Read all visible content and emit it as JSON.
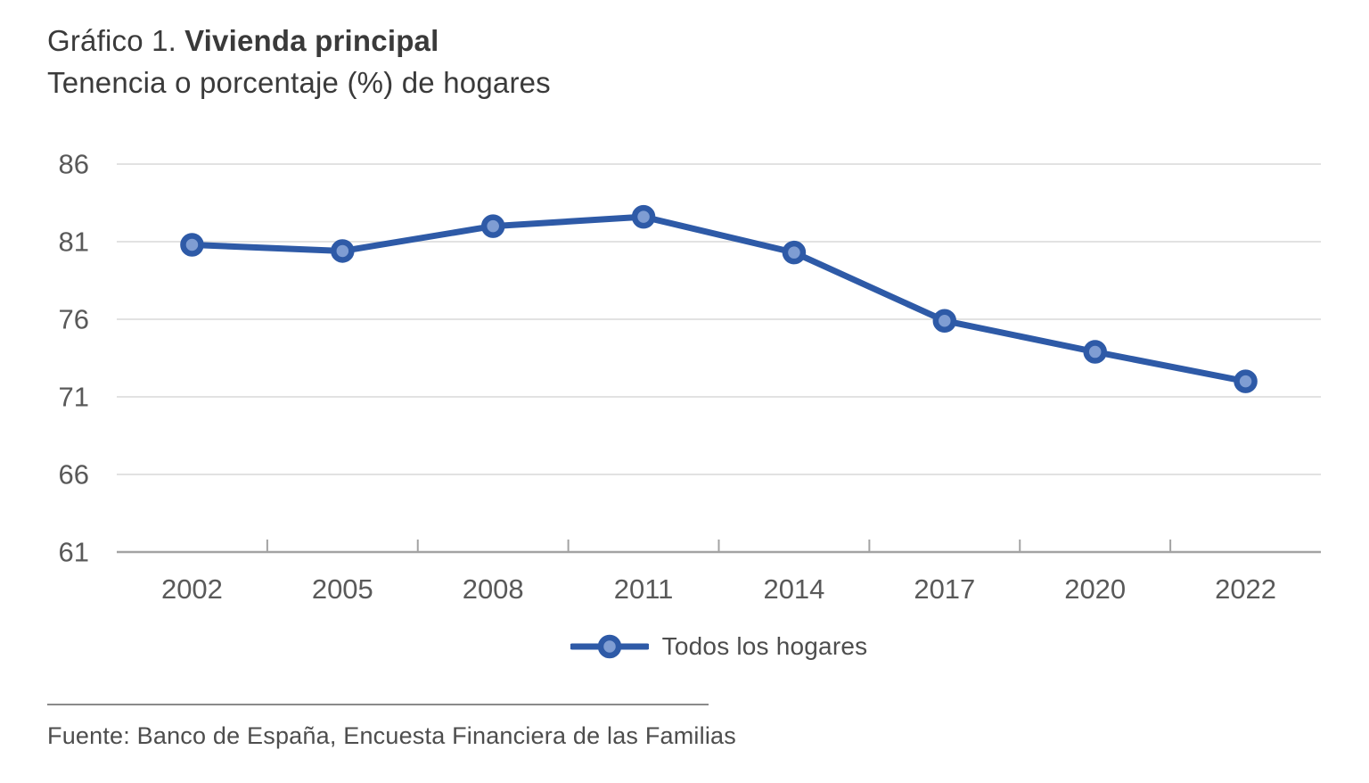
{
  "header": {
    "label": "Gráfico 1.",
    "title": "Vivienda principal",
    "subtitle": "Tenencia o porcentaje (%) de hogares"
  },
  "chart_data": {
    "type": "line",
    "title": "Gráfico 1. Vivienda principal",
    "subtitle": "Tenencia o porcentaje (%) de hogares",
    "categories": [
      "2002",
      "2005",
      "2008",
      "2011",
      "2014",
      "2017",
      "2020",
      "2022"
    ],
    "series": [
      {
        "name": "Todos los hogares",
        "values": [
          80.8,
          80.4,
          82.0,
          82.6,
          80.3,
          75.9,
          73.9,
          72.0
        ]
      }
    ],
    "xlabel": "",
    "ylabel": "",
    "ylim": [
      61,
      86
    ],
    "yticks": [
      86,
      81,
      76,
      71,
      66,
      61
    ],
    "grid": true,
    "legend_position": "bottom",
    "colors": {
      "line": "#2E5AA7",
      "marker_fill": "#7F9DD3",
      "grid": "#D9D9D9",
      "axis": "#A3A3A3",
      "tick_label": "#595959"
    }
  },
  "footer": {
    "source": "Fuente: Banco de España, Encuesta Financiera de las Familias"
  }
}
